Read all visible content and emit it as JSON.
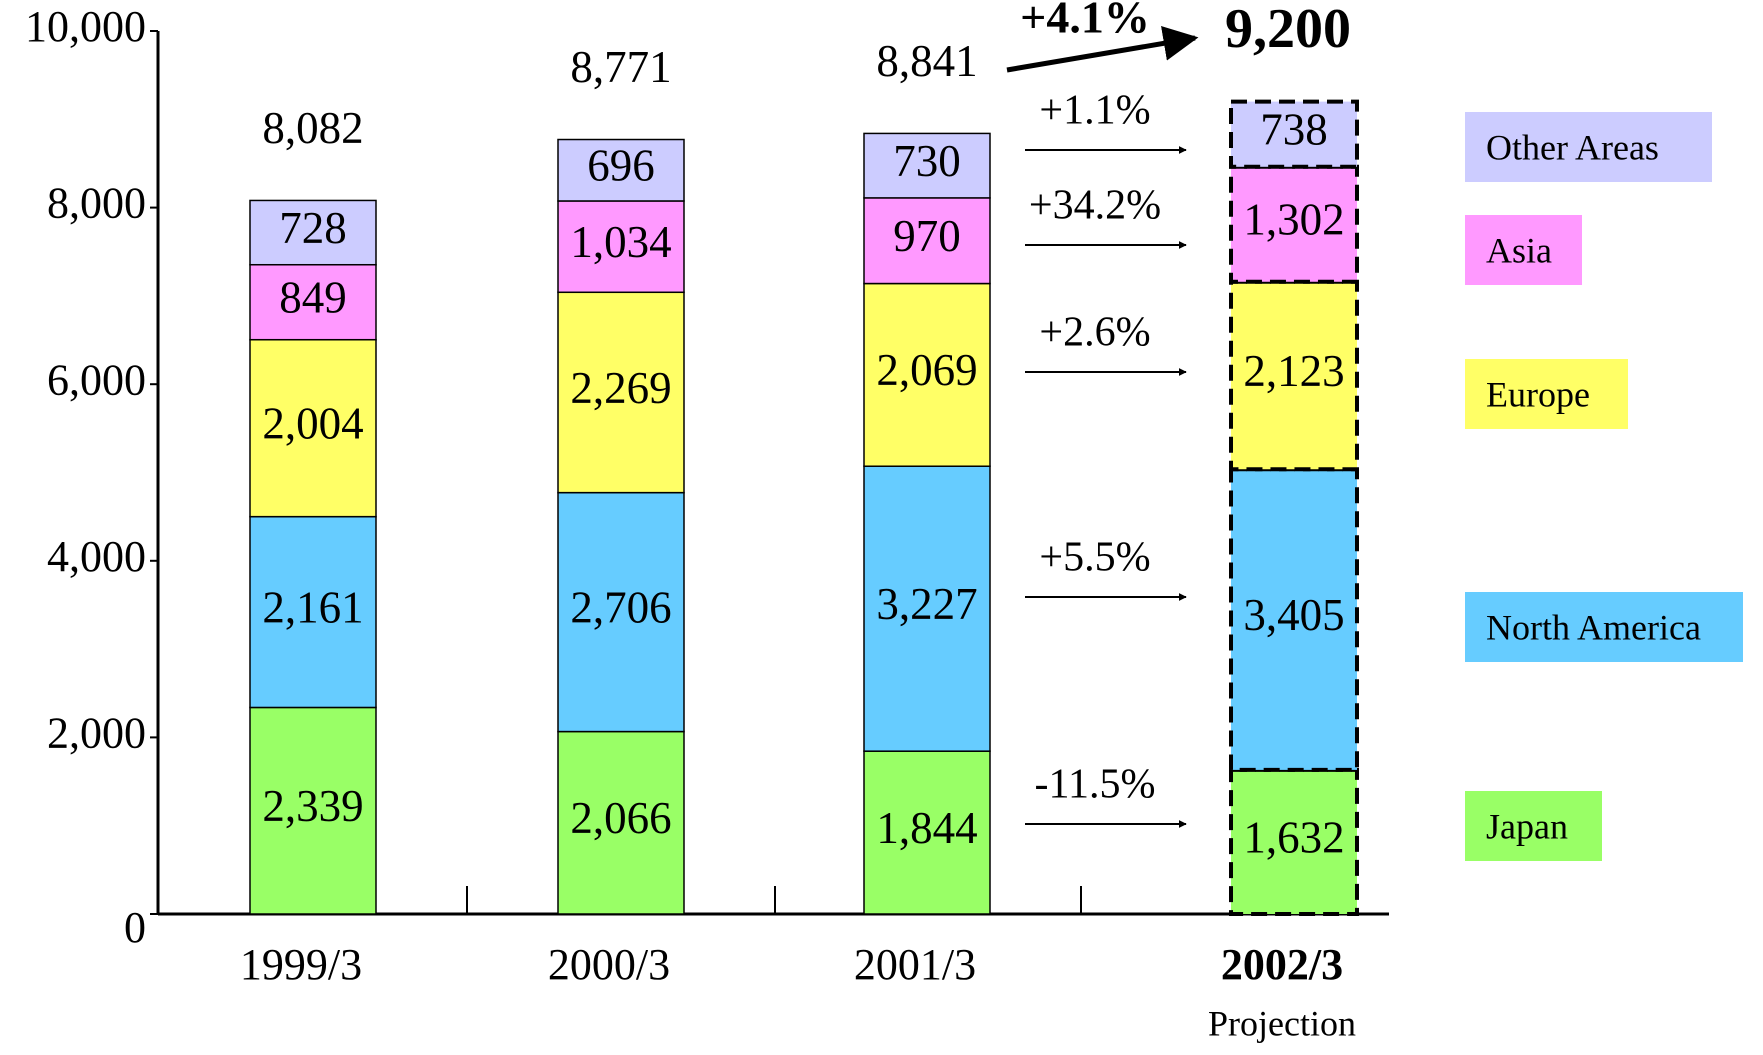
{
  "chart_data": {
    "type": "stacked_bar",
    "categories": [
      "1999/3",
      "2000/3",
      "2001/3",
      "2002/3"
    ],
    "x_sublabels": [
      null,
      null,
      null,
      "Projection"
    ],
    "ylim": [
      0,
      10000
    ],
    "yticks": [
      0,
      {
        "value": 2000,
        "label": "2,000"
      },
      {
        "value": 4000,
        "label": "4,000"
      },
      {
        "value": 6000,
        "label": "6,000"
      },
      {
        "value": 8000,
        "label": "8,000"
      },
      {
        "value": 10000,
        "label": "10,000"
      }
    ],
    "series": [
      {
        "name": "Japan",
        "color": "#99ff66",
        "values": [
          2339,
          2066,
          1844,
          1632
        ],
        "value_labels": [
          "2,339",
          "2,066",
          "1,844",
          "1,632"
        ],
        "growth": "-11.5%"
      },
      {
        "name": "North America",
        "color": "#66ccff",
        "values": [
          2161,
          2706,
          3227,
          3405
        ],
        "value_labels": [
          "2,161",
          "2,706",
          "3,227",
          "3,405"
        ],
        "growth": "+5.5%"
      },
      {
        "name": "Europe",
        "color": "#ffff66",
        "values": [
          2004,
          2269,
          2069,
          2123
        ],
        "value_labels": [
          "2,004",
          "2,269",
          "2,069",
          "2,123"
        ],
        "growth": "+2.6%"
      },
      {
        "name": "Asia",
        "color": "#ff99ff",
        "values": [
          849,
          1034,
          970,
          1302
        ],
        "value_labels": [
          "849",
          "1,034",
          "970",
          "1,302"
        ],
        "growth": "+34.2%"
      },
      {
        "name": "Other Areas",
        "color": "#ccccff",
        "values": [
          728,
          696,
          730,
          738
        ],
        "value_labels": [
          "728",
          "696",
          "730",
          "738"
        ],
        "growth": "+1.1%"
      }
    ],
    "totals": {
      "values": [
        8082,
        8771,
        8841,
        9200
      ],
      "value_labels": [
        "8,082",
        "8,771",
        "8,841",
        "9,200"
      ],
      "growth": "+4.1%"
    }
  }
}
